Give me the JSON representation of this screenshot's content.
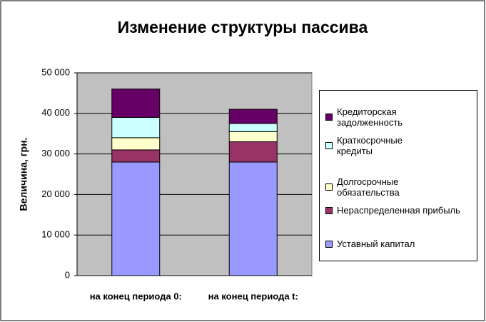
{
  "chart_data": {
    "type": "stacked_bar",
    "title": "Изменение структуры пассива",
    "y_label": "Величина, грн.",
    "categories": [
      "на конец периода 0:",
      "на конец периода t:"
    ],
    "series": [
      {
        "name": "Уставный капитал",
        "color": "#9999ff",
        "values": [
          28000,
          28000
        ]
      },
      {
        "name": "Нераспределенная прибыль",
        "color": "#993366",
        "values": [
          3000,
          5000
        ]
      },
      {
        "name": "Долгосрочные обязательства",
        "color": "#ffffcc",
        "values": [
          3000,
          2500
        ]
      },
      {
        "name": "Краткосрочные кредиты",
        "color": "#ccffff",
        "values": [
          5000,
          2000
        ]
      },
      {
        "name": "Кредиторская задолженность",
        "color": "#660066",
        "values": [
          7000,
          3500
        ]
      }
    ],
    "ylim": [
      0,
      50000
    ],
    "yticks": [
      0,
      {
        "value": 10000,
        "label": "10 000"
      },
      {
        "value": 20000,
        "label": "20 000"
      },
      {
        "value": 30000,
        "label": "30 000"
      },
      {
        "value": 40000,
        "label": "40 000"
      },
      {
        "value": 50000,
        "label": "50 000"
      }
    ],
    "grid": true,
    "legend": "right"
  }
}
